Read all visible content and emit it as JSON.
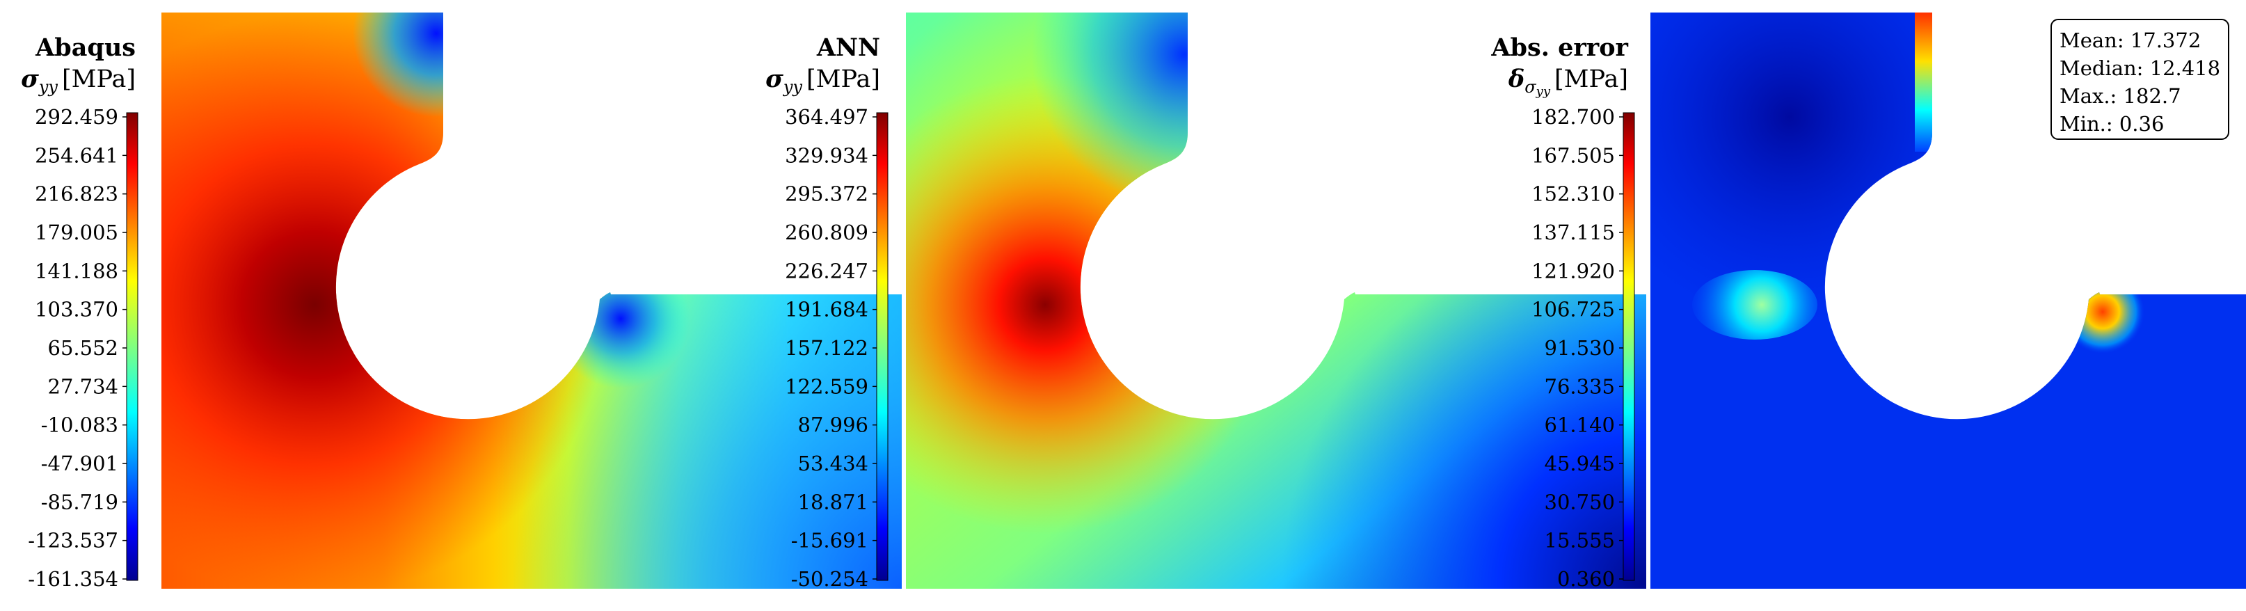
{
  "chart_data": [
    {
      "type": "heatmap",
      "title": "Abaqus",
      "quantity": "σ",
      "subscript": "yy",
      "unit": "[MPa]",
      "colorbar": {
        "colormap": "jet",
        "min": -161.354,
        "max": 292.459,
        "ticks": [
          "292.459",
          "254.641",
          "216.823",
          "179.005",
          "141.188",
          "103.370",
          "65.552",
          "27.734",
          "-10.083",
          "-47.901",
          "-85.719",
          "-123.537",
          "-161.354"
        ]
      }
    },
    {
      "type": "heatmap",
      "title": "ANN",
      "quantity": "σ",
      "subscript": "yy",
      "unit": "[MPa]",
      "colorbar": {
        "colormap": "jet",
        "min": -50.254,
        "max": 364.497,
        "ticks": [
          "364.497",
          "329.934",
          "295.372",
          "260.809",
          "226.247",
          "191.684",
          "157.122",
          "122.559",
          "87.996",
          "53.434",
          "18.871",
          "-15.691",
          "-50.254"
        ]
      }
    },
    {
      "type": "heatmap",
      "title": "Abs. error",
      "quantity": "δ",
      "subscript": "σ",
      "subsubscript": "yy",
      "unit": "[MPa]",
      "colorbar": {
        "colormap": "jet",
        "min": 0.36,
        "max": 182.7,
        "ticks": [
          "182.700",
          "167.505",
          "152.310",
          "137.115",
          "121.920",
          "106.725",
          "91.530",
          "76.335",
          "61.140",
          "45.945",
          "30.750",
          "15.555",
          "0.360"
        ]
      },
      "stats": [
        {
          "label": "Mean: 17.372"
        },
        {
          "label": "Median: 12.418"
        },
        {
          "label": "Max.: 182.7"
        },
        {
          "label": "Min.: 0.36"
        }
      ]
    }
  ]
}
